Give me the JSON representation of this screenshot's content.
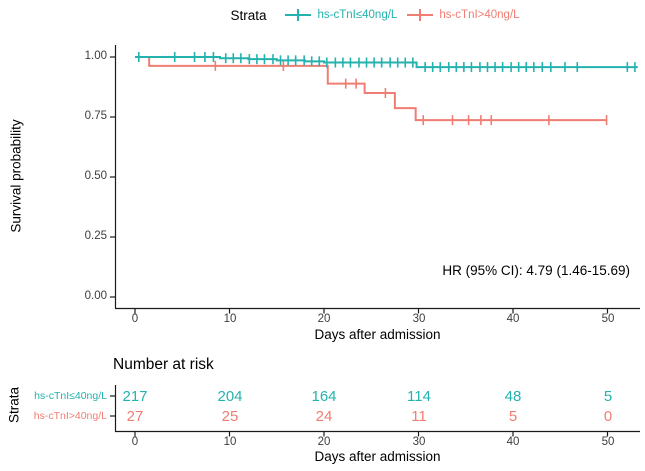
{
  "legend": {
    "title": "Strata",
    "items": [
      {
        "label": "hs-cTnI≤40ng/L",
        "color": "#24b2ae"
      },
      {
        "label": "hs-cTnI>40ng/L",
        "color": "#f07d72"
      }
    ]
  },
  "chart_data": {
    "type": "line",
    "subtype": "kaplan-meier-step-curves",
    "title": "",
    "xlabel": "Days after admission",
    "ylabel": "Survival probability",
    "grid": false,
    "xlim": [
      0,
      53.5
    ],
    "ylim": [
      0,
      1
    ],
    "x_ticks": [
      0,
      10,
      20,
      30,
      40,
      50
    ],
    "x_tick_labels": [
      "0",
      "10",
      "20",
      "30",
      "40",
      "50"
    ],
    "y_ticks": [
      0,
      0.25,
      0.5,
      0.75,
      1.0
    ],
    "y_tick_labels": [
      "0.00",
      "0.25",
      "0.50",
      "0.75",
      "1.00"
    ],
    "annotation": "HR (95% CI): 4.79 (1.46-15.69)",
    "series": [
      {
        "name": "hs-cTnI≤40ng/L",
        "color": "#24b2ae",
        "steps": [
          [
            0,
            1.0
          ],
          [
            9,
            0.995
          ],
          [
            12,
            0.991
          ],
          [
            15,
            0.986
          ],
          [
            18,
            0.982
          ],
          [
            20,
            0.977
          ],
          [
            29.8,
            0.958
          ]
        ],
        "end_time": 53.2,
        "censor_times": [
          0.4,
          4.2,
          6.3,
          7.4,
          8.3,
          9.6,
          10.4,
          11.2,
          12.1,
          12.9,
          13.7,
          14.6,
          15.4,
          16.2,
          17,
          17.9,
          18.7,
          19.5,
          20.3,
          21.2,
          22,
          22.8,
          23.7,
          24.5,
          25.3,
          26.1,
          27,
          27.8,
          28.6,
          29.4,
          30.7,
          31.5,
          32.3,
          33.2,
          34,
          34.8,
          35.6,
          36.5,
          37.3,
          38.1,
          38.9,
          39.8,
          40.6,
          41.4,
          42.2,
          43.1,
          44,
          45.5,
          46.8,
          52.1,
          52.9
        ]
      },
      {
        "name": "hs-cTnI>40ng/L",
        "color": "#f07d72",
        "steps": [
          [
            0,
            1.0
          ],
          [
            1.5,
            0.963
          ],
          [
            20.4,
            0.889
          ],
          [
            24.3,
            0.85
          ],
          [
            27.5,
            0.787
          ],
          [
            29.7,
            0.737
          ]
        ],
        "end_time": 49.9,
        "censor_times": [
          8.5,
          15.7,
          22.3,
          23.4,
          26.5,
          30.5,
          33.6,
          35.3,
          36.6,
          37.7,
          43.8,
          49.9
        ]
      }
    ]
  },
  "risk_table": {
    "title": "Number at risk",
    "axis_label": "Strata",
    "xlabel": "Days after admission",
    "x_tick_labels": [
      "0",
      "10",
      "20",
      "30",
      "40",
      "50"
    ],
    "rows": [
      {
        "label": "hs-cTnI≤40ng/L",
        "color": "#24b2ae",
        "counts": [
          "217",
          "204",
          "164",
          "114",
          "48",
          "5"
        ]
      },
      {
        "label": "hs-cTnI>40ng/L",
        "color": "#f07d72",
        "counts": [
          "27",
          "25",
          "24",
          "11",
          "5",
          "0"
        ]
      }
    ]
  }
}
